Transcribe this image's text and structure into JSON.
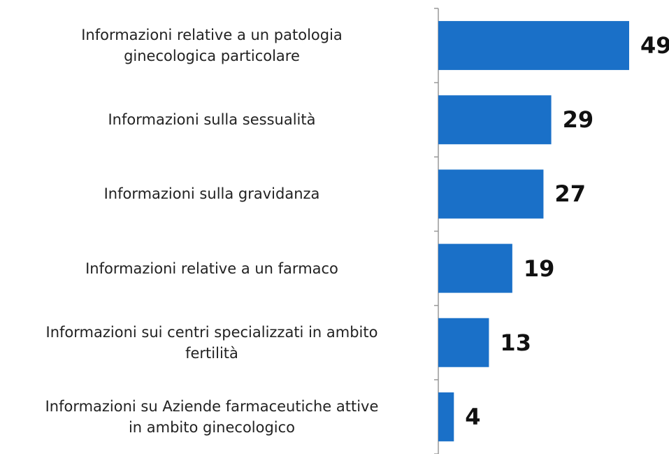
{
  "chart_data": {
    "type": "bar",
    "orientation": "horizontal",
    "categories": [
      "Informazioni relative a un patologia\nginecologica particolare",
      "Informazioni sulla sessualità",
      "Informazioni sulla gravidanza",
      "Informazioni relative a un farmaco",
      "Informazioni sui centri specializzati in ambito\nfertilità",
      "Informazioni su Aziende farmaceutiche attive\nin ambito ginecologico"
    ],
    "values": [
      49,
      29,
      27,
      19,
      13,
      4
    ],
    "color": "#1a70c8"
  }
}
